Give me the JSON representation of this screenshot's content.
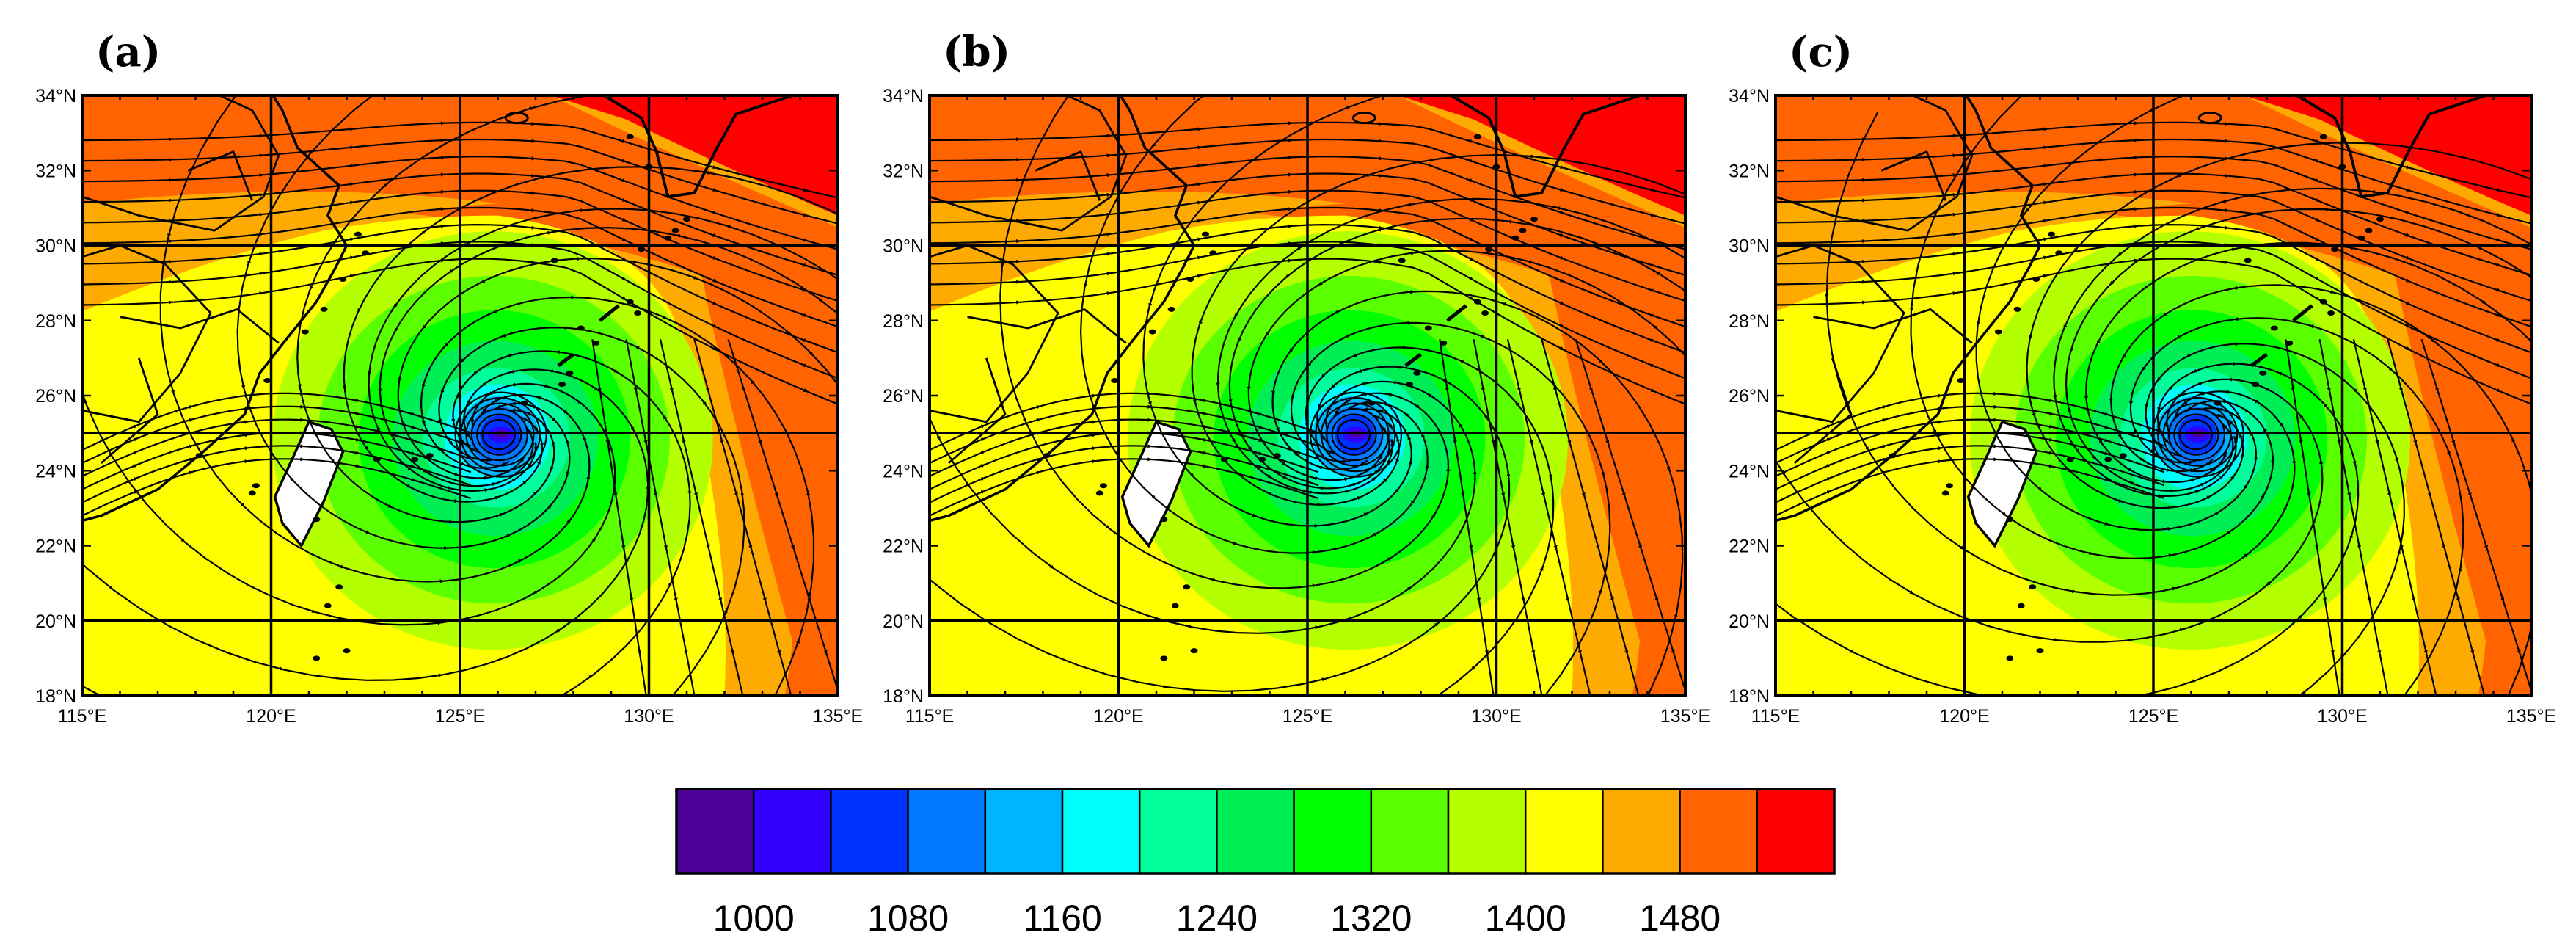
{
  "panels": [
    {
      "label": "(a)",
      "center_lon": 126.1,
      "center_lat": 25.0
    },
    {
      "label": "(b)",
      "center_lon": 126.3,
      "center_lat": 25.0
    },
    {
      "label": "(c)",
      "center_lon": 126.2,
      "center_lat": 25.0
    }
  ],
  "map_extent": {
    "lon": [
      115,
      135
    ],
    "lat": [
      18,
      34
    ]
  },
  "lon_ticks": [
    {
      "value": 115,
      "label": "115°E"
    },
    {
      "value": 120,
      "label": "120°E"
    },
    {
      "value": 125,
      "label": "125°E"
    },
    {
      "value": 130,
      "label": "130°E"
    },
    {
      "value": 135,
      "label": "135°E"
    }
  ],
  "lat_ticks": [
    {
      "value": 18,
      "label": "18°N"
    },
    {
      "value": 20,
      "label": "20°N"
    },
    {
      "value": 22,
      "label": "22°N"
    },
    {
      "value": 24,
      "label": "24°N"
    },
    {
      "value": 26,
      "label": "26°N"
    },
    {
      "value": 28,
      "label": "28°N"
    },
    {
      "value": 30,
      "label": "30°N"
    },
    {
      "value": 32,
      "label": "32°N"
    },
    {
      "value": 34,
      "label": "34°N"
    }
  ],
  "grid_lines": {
    "lon": [
      120,
      125,
      130
    ],
    "lat": [
      20,
      25,
      30
    ]
  },
  "colorbar": {
    "colors": [
      "#4b0096",
      "#3200ff",
      "#0032ff",
      "#0078ff",
      "#00b4ff",
      "#00ffff",
      "#00ff9b",
      "#00ee55",
      "#00ff00",
      "#5aff00",
      "#b4ff00",
      "#ffff00",
      "#ffaa00",
      "#ff6400",
      "#ff0000"
    ],
    "labels": [
      {
        "value": 1000,
        "text": "1000"
      },
      {
        "value": 1080,
        "text": "1080"
      },
      {
        "value": 1160,
        "text": "1160"
      },
      {
        "value": 1240,
        "text": "1240"
      },
      {
        "value": 1320,
        "text": "1320"
      },
      {
        "value": 1400,
        "text": "1400"
      },
      {
        "value": 1480,
        "text": "1480"
      }
    ]
  }
}
